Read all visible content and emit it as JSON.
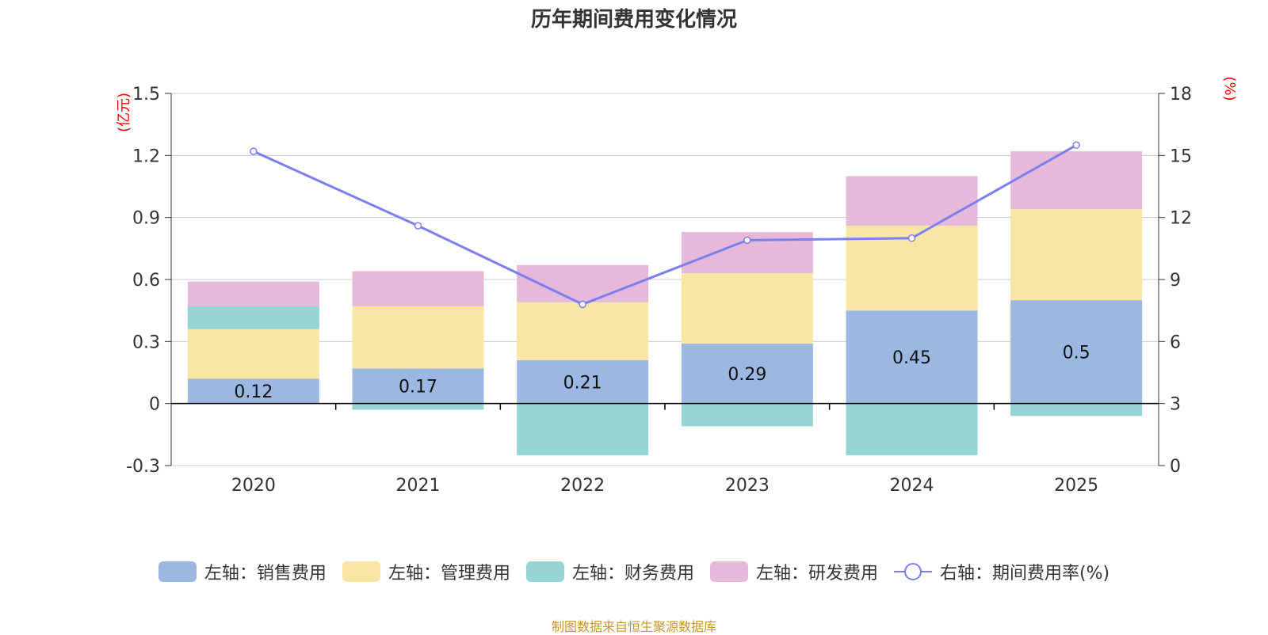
{
  "chart_data": {
    "type": "bar",
    "title": "历年期间费用变化情况",
    "categories": [
      "2020",
      "2021",
      "2022",
      "2023",
      "2024",
      "2025"
    ],
    "stacked": true,
    "series": [
      {
        "name": "左轴：销售费用",
        "axis": "left",
        "type": "bar",
        "color": "#9bb8e2",
        "values": [
          0.12,
          0.17,
          0.21,
          0.29,
          0.45,
          0.5
        ],
        "labels": [
          "0.12",
          "0.17",
          "0.21",
          "0.29",
          "0.45",
          "0.5"
        ]
      },
      {
        "name": "左轴：管理费用",
        "axis": "left",
        "type": "bar",
        "color": "#f8e6a5",
        "values": [
          0.24,
          0.3,
          0.28,
          0.34,
          0.41,
          0.44
        ]
      },
      {
        "name": "左轴：财务费用",
        "axis": "left",
        "type": "bar",
        "color": "#96d4d4",
        "values": [
          0.11,
          -0.03,
          -0.25,
          -0.11,
          -0.25,
          -0.06
        ]
      },
      {
        "name": "左轴：研发费用",
        "axis": "left",
        "type": "bar",
        "color": "#e6b9da",
        "values": [
          0.12,
          0.17,
          0.18,
          0.2,
          0.24,
          0.28
        ]
      },
      {
        "name": "右轴：期间费用率(%)",
        "axis": "right",
        "type": "line",
        "color": "#7b7ff0",
        "values": [
          15.2,
          11.6,
          7.8,
          10.9,
          11.0,
          15.5
        ]
      }
    ],
    "left_axis": {
      "label": "(亿元)",
      "ylim": [
        -0.3,
        1.5
      ],
      "ticks": [
        -0.3,
        0,
        0.3,
        0.6,
        0.9,
        1.2,
        1.5
      ],
      "tick_labels": [
        "-0.3",
        "0",
        "0.3",
        "0.6",
        "0.9",
        "1.2",
        "1.5"
      ]
    },
    "right_axis": {
      "label": "(%)",
      "ylim": [
        0,
        18
      ],
      "ticks": [
        0,
        3,
        6,
        9,
        12,
        15,
        18
      ],
      "tick_labels": [
        "0",
        "3",
        "6",
        "9",
        "12",
        "15",
        "18"
      ]
    },
    "grid": true,
    "legend_position": "bottom"
  },
  "footer": {
    "source": "制图数据来自恒生聚源数据库"
  },
  "colors": {
    "axis_label": "#ff0000",
    "grid": "#cccccc",
    "axis": "#333333",
    "text": "#333333"
  }
}
